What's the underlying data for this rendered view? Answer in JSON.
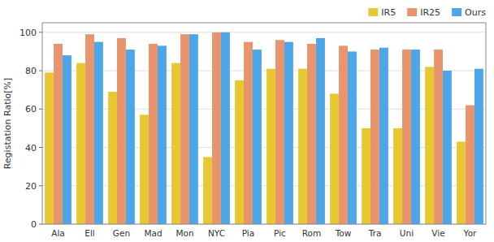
{
  "chart_data": {
    "type": "bar",
    "ylabel": "Registation Ratio[%]",
    "categories": [
      "Ala",
      "Ell",
      "Gen",
      "Mad",
      "Mon",
      "NYC",
      "Pia",
      "Pic",
      "Rom",
      "Tow",
      "Tra",
      "Uni",
      "Vie",
      "Yor"
    ],
    "series": [
      {
        "name": "IR5",
        "color": "#e8c832",
        "values": [
          79,
          84,
          69,
          57,
          84,
          35,
          75,
          81,
          81,
          68,
          50,
          50,
          82,
          43
        ]
      },
      {
        "name": "IR25",
        "color": "#e8956e",
        "values": [
          94,
          99,
          97,
          94,
          99,
          100,
          95,
          96,
          94,
          93,
          91,
          91,
          91,
          62
        ]
      },
      {
        "name": "Ours",
        "color": "#4da6e8",
        "values": [
          88,
          95,
          91,
          93,
          99,
          100,
          91,
          95,
          97,
          90,
          92,
          91,
          80,
          81
        ]
      }
    ],
    "ylim": [
      0,
      105
    ],
    "yticks": [
      0,
      20,
      40,
      60,
      80,
      100
    ],
    "grid": true,
    "legend": "upper right"
  }
}
